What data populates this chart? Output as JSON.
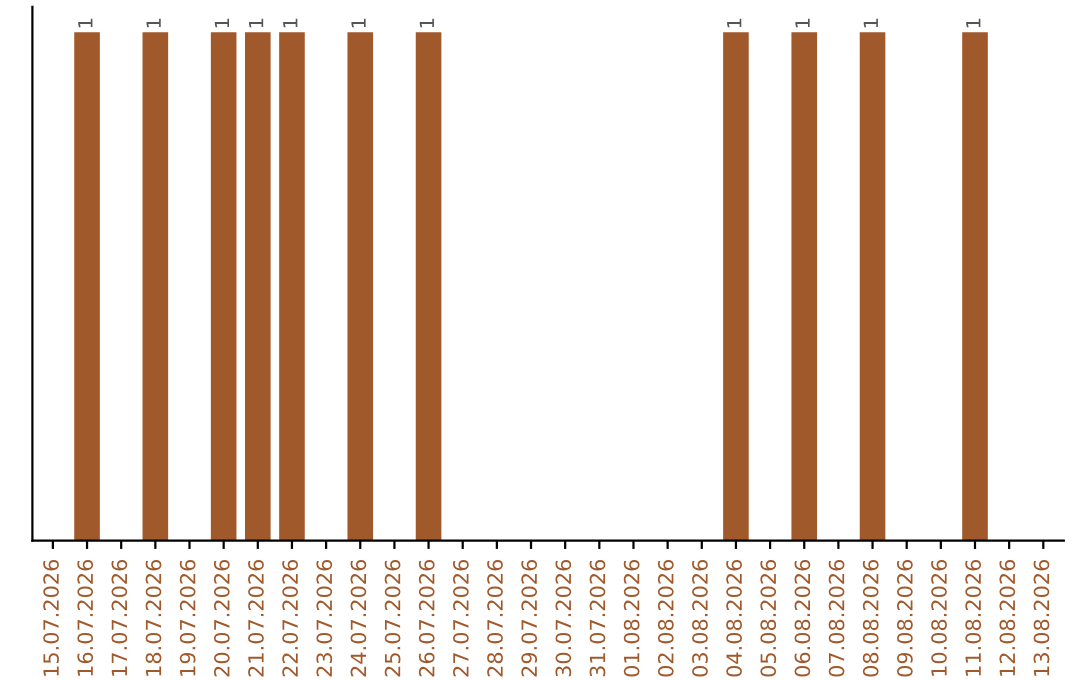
{
  "chart_data": {
    "type": "bar",
    "categories": [
      "15.07.2026",
      "16.07.2026",
      "17.07.2026",
      "18.07.2026",
      "19.07.2026",
      "20.07.2026",
      "21.07.2026",
      "22.07.2026",
      "23.07.2026",
      "24.07.2026",
      "25.07.2026",
      "26.07.2026",
      "27.07.2026",
      "28.07.2026",
      "29.07.2026",
      "30.07.2026",
      "31.07.2026",
      "01.08.2026",
      "02.08.2026",
      "03.08.2026",
      "04.08.2026",
      "05.08.2026",
      "06.08.2026",
      "07.08.2026",
      "08.08.2026",
      "09.08.2026",
      "10.08.2026",
      "11.08.2026",
      "12.08.2026",
      "13.08.2026"
    ],
    "values": [
      0,
      1,
      0,
      1,
      0,
      1,
      1,
      1,
      0,
      1,
      0,
      1,
      0,
      0,
      0,
      0,
      0,
      0,
      0,
      0,
      1,
      0,
      1,
      0,
      1,
      0,
      0,
      1,
      0,
      0
    ],
    "value_labels": [
      null,
      "1",
      null,
      "1",
      null,
      "1",
      "1",
      "1",
      null,
      "1",
      null,
      "1",
      null,
      null,
      null,
      null,
      null,
      null,
      null,
      null,
      "1",
      null,
      "1",
      null,
      "1",
      null,
      null,
      "1",
      null,
      null
    ],
    "color": "#a0592b",
    "tick_labels": "x",
    "grid": false,
    "legend": false
  }
}
